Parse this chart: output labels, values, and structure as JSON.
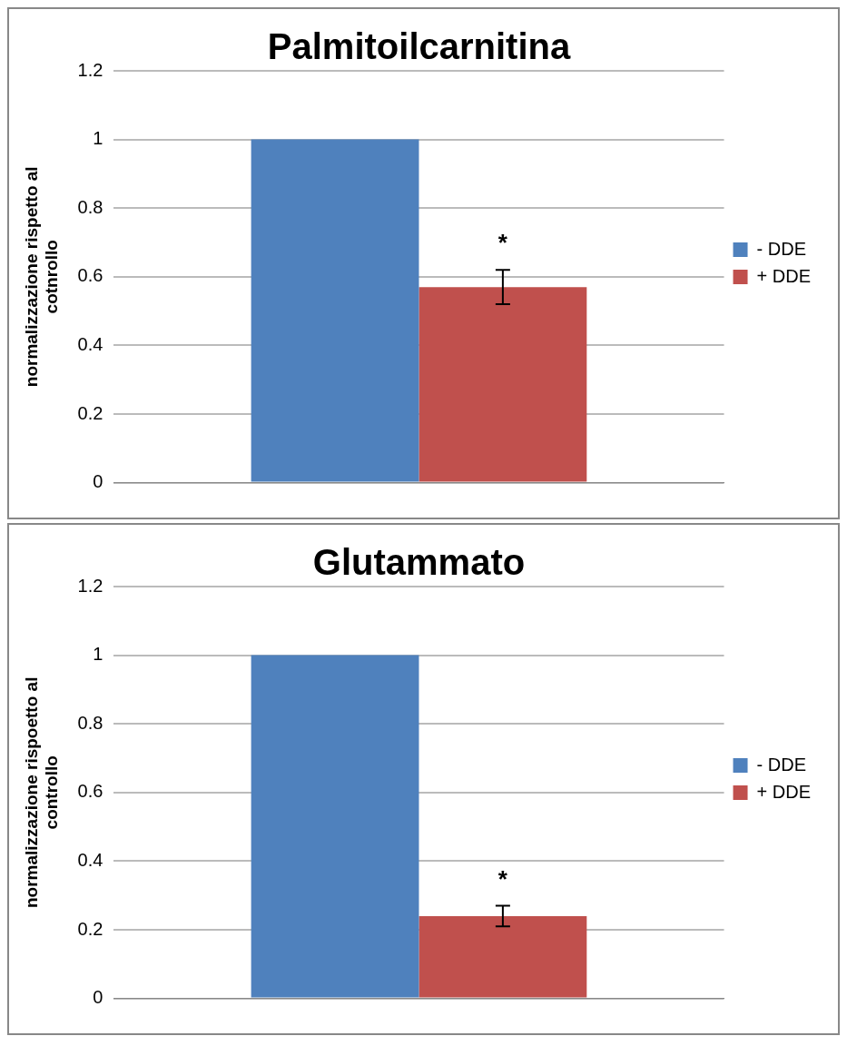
{
  "chart_data": [
    {
      "type": "bar",
      "title": "Palmitoilcarnitina",
      "ylabel": "normalizzazione rispetto al cotnrollo",
      "categories": [
        null
      ],
      "series": [
        {
          "name": "- DDE",
          "color": "#4f81bd",
          "values": [
            1
          ]
        },
        {
          "name": "+ DDE",
          "color": "#c0504d",
          "values": [
            0.57
          ],
          "errors": [
            0.05
          ]
        }
      ],
      "ylim": [
        0,
        1.2
      ],
      "yticks": [
        0,
        0.2,
        0.4,
        0.6,
        0.8,
        1,
        1.2
      ],
      "grid": "y",
      "legend": "right",
      "annotations": [
        "*"
      ]
    },
    {
      "type": "bar",
      "title": "Glutammato",
      "ylabel": "normalizzazione rispoetto al controllo",
      "categories": [
        null
      ],
      "series": [
        {
          "name": "- DDE",
          "color": "#4f81bd",
          "values": [
            1
          ]
        },
        {
          "name": "+ DDE",
          "color": "#c0504d",
          "values": [
            0.24
          ],
          "errors": [
            0.03
          ]
        }
      ],
      "ylim": [
        0,
        1.2
      ],
      "yticks": [
        0,
        0.2,
        0.4,
        0.6,
        0.8,
        1,
        1.2
      ],
      "grid": "y",
      "legend": "right",
      "annotations": [
        "*"
      ]
    }
  ]
}
